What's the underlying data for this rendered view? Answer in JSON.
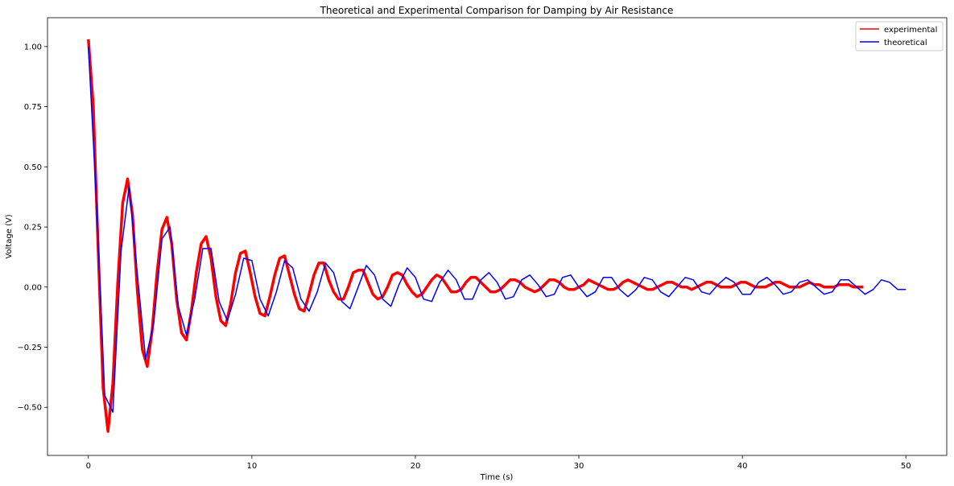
{
  "chart_data": {
    "type": "line",
    "title": "Theoretical and Experimental Comparison for Damping by Air Resistance",
    "xlabel": "Time (s)",
    "ylabel": "Voltage (V)",
    "xlim": [
      -2.5,
      52.5
    ],
    "ylim": [
      -0.7,
      1.12
    ],
    "xticks": [
      0,
      10,
      20,
      30,
      40,
      50
    ],
    "yticks": [
      -0.5,
      -0.25,
      0.0,
      0.25,
      0.5,
      0.75,
      1.0
    ],
    "xtick_labels": [
      "0",
      "10",
      "20",
      "30",
      "40",
      "50"
    ],
    "ytick_labels": [
      "−0.50",
      "−0.25",
      "0.00",
      "0.25",
      "0.50",
      "0.75",
      "1.00"
    ],
    "grid": false,
    "legend_position": "top-right",
    "series": [
      {
        "name": "experimental",
        "color": "#ff0000",
        "x": [
          0,
          0.3,
          0.6,
          0.9,
          1.2,
          1.5,
          1.8,
          2.1,
          2.4,
          2.7,
          3.0,
          3.3,
          3.6,
          3.9,
          4.2,
          4.5,
          4.8,
          5.1,
          5.4,
          5.7,
          6.0,
          6.3,
          6.6,
          6.9,
          7.2,
          7.5,
          7.8,
          8.1,
          8.4,
          8.7,
          9.0,
          9.3,
          9.6,
          9.9,
          10.2,
          10.5,
          10.8,
          11.1,
          11.4,
          11.7,
          12.0,
          12.3,
          12.6,
          12.9,
          13.2,
          13.5,
          13.8,
          14.1,
          14.4,
          14.7,
          15.0,
          15.3,
          15.6,
          15.9,
          16.2,
          16.5,
          16.8,
          17.1,
          17.4,
          17.7,
          18.0,
          18.3,
          18.6,
          18.9,
          19.2,
          19.5,
          19.8,
          20.1,
          20.4,
          20.7,
          21.0,
          21.3,
          21.6,
          21.9,
          22.2,
          22.5,
          22.8,
          23.1,
          23.4,
          23.7,
          24.0,
          24.3,
          24.6,
          24.9,
          25.2,
          25.5,
          25.8,
          26.1,
          26.4,
          26.7,
          27.0,
          27.3,
          27.6,
          27.9,
          28.2,
          28.5,
          28.8,
          29.1,
          29.4,
          29.7,
          30.0,
          30.3,
          30.6,
          30.9,
          31.2,
          31.5,
          31.8,
          32.1,
          32.4,
          32.7,
          33.0,
          33.3,
          33.6,
          33.9,
          34.2,
          34.5,
          34.8,
          35.1,
          35.4,
          35.7,
          36.0,
          36.3,
          36.6,
          36.9,
          37.2,
          37.5,
          37.8,
          38.1,
          38.4,
          38.7,
          39.0,
          39.3,
          39.6,
          39.9,
          40.2,
          40.5,
          40.8,
          41.1,
          41.4,
          41.7,
          42.0,
          42.3,
          42.6,
          42.9,
          43.2,
          43.5,
          43.8,
          44.1,
          44.4,
          44.7,
          45.0,
          45.3,
          45.6,
          45.9,
          46.2,
          46.5,
          46.8,
          47.1,
          47.4
        ],
        "y": [
          1.03,
          0.75,
          0.15,
          -0.42,
          -0.6,
          -0.4,
          0.02,
          0.35,
          0.45,
          0.3,
          -0.02,
          -0.26,
          -0.33,
          -0.18,
          0.06,
          0.24,
          0.29,
          0.18,
          -0.05,
          -0.19,
          -0.22,
          -0.1,
          0.06,
          0.18,
          0.21,
          0.12,
          -0.04,
          -0.14,
          -0.16,
          -0.07,
          0.06,
          0.14,
          0.15,
          0.06,
          -0.04,
          -0.11,
          -0.12,
          -0.04,
          0.05,
          0.12,
          0.13,
          0.05,
          -0.03,
          -0.09,
          -0.1,
          -0.03,
          0.05,
          0.1,
          0.1,
          0.03,
          -0.02,
          -0.05,
          -0.05,
          0.0,
          0.06,
          0.07,
          0.07,
          0.02,
          -0.03,
          -0.05,
          -0.04,
          0.0,
          0.05,
          0.06,
          0.05,
          0.01,
          -0.02,
          -0.04,
          -0.03,
          0.0,
          0.03,
          0.05,
          0.04,
          0.01,
          -0.02,
          -0.02,
          -0.01,
          0.02,
          0.04,
          0.04,
          0.02,
          0.0,
          -0.02,
          -0.02,
          -0.01,
          0.01,
          0.03,
          0.03,
          0.02,
          0.0,
          -0.01,
          -0.02,
          -0.01,
          0.01,
          0.03,
          0.03,
          0.02,
          0.0,
          -0.01,
          -0.01,
          0.0,
          0.01,
          0.03,
          0.02,
          0.01,
          0.0,
          -0.01,
          -0.01,
          0.0,
          0.02,
          0.03,
          0.02,
          0.01,
          0.0,
          -0.01,
          -0.01,
          0.0,
          0.01,
          0.02,
          0.02,
          0.01,
          0.0,
          0.0,
          -0.01,
          0.0,
          0.01,
          0.02,
          0.02,
          0.01,
          0.0,
          0.0,
          0.0,
          0.01,
          0.02,
          0.02,
          0.01,
          0.0,
          0.0,
          0.0,
          0.01,
          0.02,
          0.02,
          0.01,
          0.0,
          0.0,
          0.0,
          0.01,
          0.02,
          0.01,
          0.01,
          0.0,
          0.0,
          0.0,
          0.01,
          0.01,
          0.01,
          0.0,
          0.0,
          0.0
        ]
      },
      {
        "name": "theoretical",
        "color": "#0000ff",
        "x": [
          0,
          0.5,
          1.0,
          1.5,
          2.0,
          2.5,
          3.0,
          3.5,
          4.0,
          4.5,
          5.0,
          5.5,
          6.0,
          6.5,
          7.0,
          7.5,
          8.0,
          8.5,
          9.0,
          9.5,
          10.0,
          10.5,
          11.0,
          11.5,
          12.0,
          12.5,
          13.0,
          13.5,
          14.0,
          14.5,
          15.0,
          15.5,
          16.0,
          16.5,
          17.0,
          17.5,
          18.0,
          18.5,
          19.0,
          19.5,
          20.0,
          20.5,
          21.0,
          21.5,
          22.0,
          22.5,
          23.0,
          23.5,
          24.0,
          24.5,
          25.0,
          25.5,
          26.0,
          26.5,
          27.0,
          27.5,
          28.0,
          28.5,
          29.0,
          29.5,
          30.0,
          30.5,
          31.0,
          31.5,
          32.0,
          32.5,
          33.0,
          33.5,
          34.0,
          34.5,
          35.0,
          35.5,
          36.0,
          36.5,
          37.0,
          37.5,
          38.0,
          38.5,
          39.0,
          39.5,
          40.0,
          40.5,
          41.0,
          41.5,
          42.0,
          42.5,
          43.0,
          43.5,
          44.0,
          44.5,
          45.0,
          45.5,
          46.0,
          46.5,
          47.0,
          47.5,
          48.0,
          48.5,
          49.0,
          49.5,
          50.0
        ],
        "y": [
          1.0,
          0.35,
          -0.45,
          -0.52,
          0.15,
          0.42,
          0.05,
          -0.3,
          -0.15,
          0.2,
          0.25,
          -0.08,
          -0.2,
          -0.05,
          0.16,
          0.16,
          -0.06,
          -0.14,
          -0.03,
          0.12,
          0.11,
          -0.05,
          -0.12,
          -0.02,
          0.11,
          0.08,
          -0.05,
          -0.1,
          -0.02,
          0.1,
          0.06,
          -0.06,
          -0.09,
          0.0,
          0.09,
          0.05,
          -0.05,
          -0.08,
          0.01,
          0.08,
          0.04,
          -0.05,
          -0.06,
          0.02,
          0.07,
          0.03,
          -0.05,
          -0.05,
          0.03,
          0.06,
          0.02,
          -0.05,
          -0.04,
          0.03,
          0.05,
          0.01,
          -0.04,
          -0.03,
          0.04,
          0.05,
          0.0,
          -0.04,
          -0.02,
          0.04,
          0.04,
          -0.01,
          -0.04,
          -0.01,
          0.04,
          0.03,
          -0.02,
          -0.04,
          0.0,
          0.04,
          0.03,
          -0.02,
          -0.03,
          0.01,
          0.04,
          0.02,
          -0.03,
          -0.03,
          0.02,
          0.04,
          0.01,
          -0.03,
          -0.02,
          0.02,
          0.03,
          0.0,
          -0.03,
          -0.02,
          0.03,
          0.03,
          0.0,
          -0.03,
          -0.01,
          0.03,
          0.02,
          -0.01,
          -0.01
        ]
      }
    ]
  }
}
